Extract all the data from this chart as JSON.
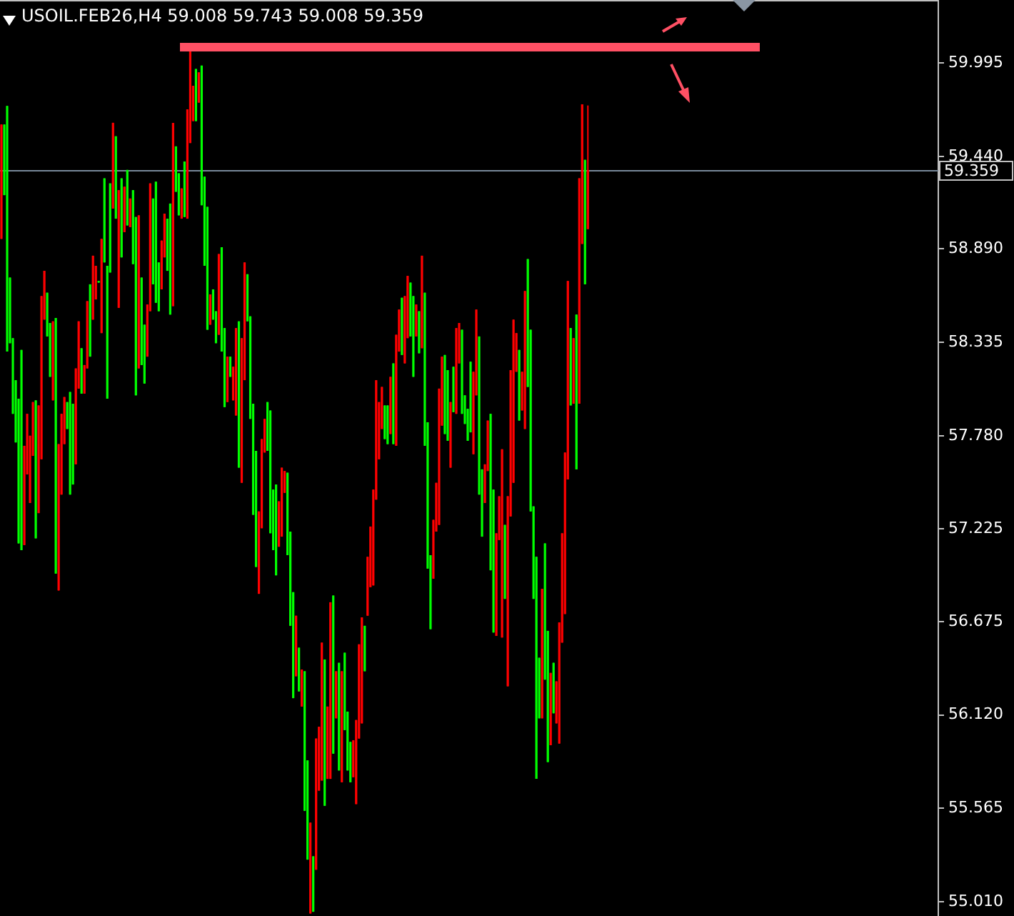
{
  "chart_data": {
    "type": "candlestick",
    "title": "USOIL.FEB26,H4 59.008 59.743 59.008 59.359",
    "categories": [
      null,
      null,
      null,
      null,
      null,
      null,
      null,
      null,
      null,
      null,
      null,
      null,
      null,
      null,
      null,
      null,
      null,
      null,
      null,
      null,
      null,
      null,
      null,
      null,
      null,
      null,
      null,
      null,
      null,
      null,
      null,
      null,
      null,
      null,
      null,
      null,
      null,
      null,
      null,
      null,
      null,
      null,
      null,
      null,
      null,
      null,
      null,
      null,
      null,
      null,
      null,
      null,
      null,
      null,
      null,
      null,
      null,
      null,
      null,
      null,
      null,
      null,
      null,
      null,
      null,
      null,
      null,
      null,
      null,
      null,
      null,
      null,
      null,
      null,
      null,
      null,
      null,
      null,
      null,
      null,
      null,
      null,
      null,
      null,
      null,
      null,
      null,
      null,
      null,
      null,
      null,
      null,
      null,
      null,
      null,
      null,
      null,
      null,
      null,
      null,
      null,
      null,
      null,
      null,
      null,
      null,
      null,
      null,
      null,
      null,
      null,
      null,
      null,
      null,
      null,
      null,
      null,
      null,
      null,
      null,
      null,
      null,
      null,
      null,
      null,
      null,
      null,
      null,
      null,
      null,
      null,
      null,
      null,
      null,
      null,
      null,
      null,
      null,
      null,
      null,
      null,
      null,
      null,
      null,
      null,
      null,
      null,
      null,
      null,
      null,
      null,
      null,
      null,
      null,
      null,
      null,
      null,
      null,
      null,
      null,
      null,
      null,
      null,
      null,
      null,
      null,
      null,
      null,
      null,
      null,
      null,
      null,
      null,
      null,
      null,
      null,
      null,
      null,
      null,
      null,
      null,
      null,
      null,
      null,
      null,
      null,
      null,
      null,
      null,
      null,
      null,
      null,
      null,
      null,
      null,
      null,
      null,
      null,
      null,
      null,
      null,
      null,
      null,
      null,
      null,
      null,
      null,
      null,
      null,
      null,
      null,
      null,
      null,
      null,
      null,
      null,
      null,
      null,
      null,
      null,
      null,
      null,
      null,
      null,
      null,
      null,
      null,
      null,
      null,
      null,
      null,
      null,
      null,
      null,
      null,
      null,
      null,
      null,
      null,
      null,
      null,
      null,
      null,
      null,
      null,
      null,
      null,
      null,
      null,
      null,
      null,
      null,
      null,
      null,
      null,
      null,
      null,
      null,
      null,
      null,
      null,
      null,
      null,
      null,
      null,
      null,
      null,
      null,
      null,
      null,
      null,
      null,
      null,
      null,
      null,
      null,
      null,
      null,
      null,
      null,
      null,
      null,
      null,
      null,
      null,
      null,
      null,
      null,
      null,
      null,
      null,
      null,
      null,
      null,
      null,
      null,
      null,
      null,
      null,
      null,
      null,
      null,
      null,
      null,
      null,
      null,
      null,
      null,
      null,
      null,
      null,
      null,
      null,
      null,
      null,
      null,
      null,
      null,
      null,
      null,
      null,
      null,
      null,
      null,
      null,
      null,
      null,
      null
    ],
    "ohlc": [
      [
        58.95,
        59.63,
        58.95,
        59.63
      ],
      [
        59.63,
        59.63,
        59.21,
        59.21
      ],
      [
        59.74,
        59.74,
        58.28,
        58.28
      ],
      [
        58.72,
        58.72,
        58.33,
        58.33
      ],
      [
        58.36,
        58.36,
        57.91,
        57.91
      ],
      [
        58.11,
        58.11,
        57.74,
        57.74
      ],
      [
        58.0,
        58.0,
        57.14,
        57.14
      ],
      [
        58.29,
        58.29,
        57.1,
        57.1
      ],
      [
        57.13,
        57.72,
        57.13,
        57.72
      ],
      [
        57.55,
        57.91,
        57.55,
        57.91
      ],
      [
        57.38,
        57.78,
        57.38,
        57.78
      ],
      [
        57.66,
        57.98,
        57.66,
        57.98
      ],
      [
        57.99,
        57.99,
        57.17,
        57.17
      ],
      [
        57.32,
        57.96,
        57.32,
        57.96
      ],
      [
        57.64,
        58.61,
        57.64,
        58.61
      ],
      [
        58.47,
        58.76,
        58.47,
        58.76
      ],
      [
        58.63,
        58.63,
        58.37,
        58.37
      ],
      [
        58.45,
        58.45,
        58.13,
        58.13
      ],
      [
        57.99,
        58.46,
        57.99,
        58.46
      ],
      [
        58.48,
        58.48,
        56.96,
        56.96
      ],
      [
        56.86,
        57.73,
        56.86,
        57.73
      ],
      [
        57.43,
        57.91,
        57.43,
        57.91
      ],
      [
        57.73,
        58.01,
        57.73,
        58.01
      ],
      [
        57.98,
        57.98,
        57.82,
        57.82
      ],
      [
        58.04,
        58.04,
        57.43,
        57.43
      ],
      [
        57.97,
        57.97,
        57.49,
        57.49
      ],
      [
        57.61,
        58.18,
        57.61,
        58.18
      ],
      [
        58.06,
        58.46,
        58.06,
        58.46
      ],
      [
        58.3,
        58.3,
        58.03,
        58.03
      ],
      [
        58.03,
        58.2,
        58.03,
        58.2
      ],
      [
        58.18,
        58.58,
        58.18,
        58.58
      ],
      [
        58.68,
        58.68,
        58.25,
        58.25
      ],
      [
        58.47,
        58.85,
        58.47,
        58.85
      ],
      [
        58.59,
        58.79,
        58.59,
        58.79
      ],
      [
        58.7,
        58.7,
        58.69,
        58.69
      ],
      [
        58.39,
        58.95,
        58.39,
        58.95
      ],
      [
        59.31,
        59.31,
        58.81,
        58.81
      ],
      [
        58.79,
        58.79,
        58.0,
        58.0
      ],
      [
        59.28,
        59.28,
        58.75,
        58.75
      ],
      [
        59.13,
        59.64,
        59.13,
        59.64
      ],
      [
        59.56,
        59.56,
        59.07,
        59.07
      ],
      [
        58.54,
        59.24,
        58.54,
        59.24
      ],
      [
        59.31,
        59.31,
        58.84,
        58.84
      ],
      [
        58.99,
        59.26,
        58.99,
        59.26
      ],
      [
        59.36,
        59.36,
        59.03,
        59.03
      ],
      [
        59.02,
        59.19,
        59.02,
        59.19
      ],
      [
        59.24,
        59.24,
        58.8,
        58.8
      ],
      [
        59.08,
        59.08,
        58.02,
        58.02
      ],
      [
        58.18,
        59.09,
        58.18,
        59.09
      ],
      [
        58.72,
        58.72,
        58.2,
        58.2
      ],
      [
        58.44,
        58.44,
        58.09,
        58.09
      ],
      [
        58.25,
        58.56,
        58.25,
        58.56
      ],
      [
        58.52,
        59.28,
        58.52,
        59.28
      ],
      [
        59.19,
        59.19,
        58.68,
        58.68
      ],
      [
        59.29,
        59.29,
        58.57,
        58.57
      ],
      [
        58.81,
        58.81,
        58.52,
        58.52
      ],
      [
        58.65,
        58.94,
        58.65,
        58.94
      ],
      [
        58.84,
        59.1,
        58.84,
        59.1
      ],
      [
        59.07,
        59.07,
        58.76,
        58.76
      ],
      [
        59.16,
        59.16,
        58.5,
        58.5
      ],
      [
        58.55,
        59.64,
        58.55,
        59.64
      ],
      [
        59.5,
        59.5,
        59.23,
        59.23
      ],
      [
        59.34,
        59.34,
        59.09,
        59.09
      ],
      [
        59.07,
        59.25,
        59.07,
        59.25
      ],
      [
        59.41,
        59.41,
        59.08,
        59.08
      ],
      [
        59.07,
        59.72,
        59.07,
        59.72
      ],
      [
        59.52,
        60.07,
        59.52,
        60.07
      ],
      [
        59.65,
        59.86,
        59.65,
        59.86
      ],
      [
        59.96,
        59.96,
        59.65,
        59.65
      ],
      [
        59.76,
        59.94,
        59.76,
        59.94
      ],
      [
        59.98,
        59.98,
        59.15,
        59.15
      ],
      [
        59.32,
        59.32,
        58.79,
        58.79
      ],
      [
        59.14,
        59.14,
        58.41,
        58.41
      ],
      [
        58.44,
        58.62,
        58.44,
        58.62
      ],
      [
        58.65,
        58.65,
        58.47,
        58.47
      ],
      [
        58.52,
        58.52,
        58.33,
        58.33
      ],
      [
        58.38,
        58.86,
        58.38,
        58.86
      ],
      [
        58.9,
        58.9,
        58.28,
        58.28
      ],
      [
        58.42,
        58.42,
        57.95,
        57.95
      ],
      [
        57.98,
        58.25,
        57.98,
        58.25
      ],
      [
        58.25,
        58.25,
        58.13,
        58.13
      ],
      [
        57.99,
        58.19,
        57.99,
        58.19
      ],
      [
        57.9,
        58.42,
        57.9,
        58.42
      ],
      [
        58.46,
        58.46,
        57.59,
        57.59
      ],
      [
        57.5,
        58.36,
        57.5,
        58.36
      ],
      [
        58.11,
        58.81,
        58.11,
        58.81
      ],
      [
        58.74,
        58.74,
        58.46,
        58.46
      ],
      [
        58.49,
        58.49,
        57.88,
        57.88
      ],
      [
        57.97,
        57.97,
        57.31,
        57.31
      ],
      [
        57.69,
        57.69,
        57.0,
        57.0
      ],
      [
        56.84,
        57.33,
        56.84,
        57.33
      ],
      [
        57.23,
        57.76,
        57.23,
        57.76
      ],
      [
        57.68,
        57.88,
        57.68,
        57.88
      ],
      [
        57.98,
        57.98,
        57.69,
        57.69
      ],
      [
        57.93,
        57.93,
        57.2,
        57.2
      ],
      [
        57.46,
        57.46,
        57.1,
        57.1
      ],
      [
        57.49,
        57.49,
        56.95,
        56.95
      ],
      [
        57.12,
        57.39,
        57.12,
        57.39
      ],
      [
        57.18,
        57.59,
        57.18,
        57.59
      ],
      [
        57.44,
        57.57,
        57.44,
        57.57
      ],
      [
        57.56,
        57.56,
        57.07,
        57.07
      ],
      [
        57.21,
        57.21,
        56.65,
        56.65
      ],
      [
        56.85,
        56.85,
        56.22,
        56.22
      ],
      [
        56.35,
        56.71,
        56.35,
        56.71
      ],
      [
        56.52,
        56.52,
        56.26,
        56.26
      ],
      [
        56.17,
        56.39,
        56.17,
        56.39
      ],
      [
        56.38,
        56.38,
        55.55,
        55.55
      ],
      [
        55.85,
        55.85,
        55.26,
        55.26
      ],
      [
        54.94,
        55.48,
        54.94,
        55.48
      ],
      [
        55.28,
        55.28,
        54.95,
        54.95
      ],
      [
        55.2,
        55.98,
        55.2,
        55.98
      ],
      [
        55.67,
        56.05,
        55.67,
        56.05
      ],
      [
        55.73,
        56.55,
        55.73,
        56.55
      ],
      [
        56.45,
        56.45,
        55.58,
        55.58
      ],
      [
        55.74,
        56.17,
        55.74,
        56.17
      ],
      [
        55.74,
        56.79,
        55.74,
        56.79
      ],
      [
        56.83,
        56.83,
        55.89,
        55.89
      ],
      [
        56.1,
        56.38,
        56.1,
        56.38
      ],
      [
        56.43,
        56.43,
        55.79,
        55.79
      ],
      [
        55.72,
        56.38,
        55.72,
        56.38
      ],
      [
        56.49,
        56.49,
        56.03,
        56.03
      ],
      [
        56.14,
        56.14,
        55.79,
        55.79
      ],
      [
        55.96,
        55.96,
        55.72,
        55.72
      ],
      [
        55.75,
        55.97,
        55.75,
        55.97
      ],
      [
        55.59,
        56.09,
        55.59,
        56.09
      ],
      [
        55.98,
        56.54,
        55.98,
        56.54
      ],
      [
        56.07,
        56.7,
        56.07,
        56.7
      ],
      [
        56.65,
        56.65,
        56.38,
        56.38
      ],
      [
        56.71,
        57.06,
        56.71,
        57.06
      ],
      [
        56.88,
        57.24,
        56.88,
        57.24
      ],
      [
        56.89,
        57.46,
        56.89,
        57.46
      ],
      [
        57.4,
        58.11,
        57.4,
        58.11
      ],
      [
        57.64,
        57.98,
        57.64,
        57.98
      ],
      [
        57.82,
        58.07,
        57.82,
        58.07
      ],
      [
        57.96,
        57.96,
        57.76,
        57.76
      ],
      [
        57.96,
        57.96,
        57.73,
        57.73
      ],
      [
        57.79,
        58.13,
        57.79,
        58.13
      ],
      [
        58.21,
        58.21,
        57.73,
        57.73
      ],
      [
        57.72,
        58.38,
        57.72,
        58.38
      ],
      [
        58.28,
        58.53,
        58.28,
        58.53
      ],
      [
        58.6,
        58.6,
        58.26,
        58.26
      ],
      [
        58.21,
        58.61,
        58.21,
        58.61
      ],
      [
        58.36,
        58.73,
        58.36,
        58.73
      ],
      [
        58.69,
        58.69,
        58.37,
        58.37
      ],
      [
        58.61,
        58.61,
        58.13,
        58.13
      ],
      [
        58.37,
        58.56,
        58.37,
        58.56
      ],
      [
        58.52,
        58.52,
        58.27,
        58.27
      ],
      [
        58.3,
        58.85,
        58.3,
        58.85
      ],
      [
        58.63,
        58.63,
        57.72,
        57.72
      ],
      [
        57.86,
        57.86,
        56.99,
        56.99
      ],
      [
        57.07,
        57.07,
        56.63,
        56.63
      ],
      [
        56.93,
        57.28,
        56.93,
        57.28
      ],
      [
        57.21,
        57.5,
        57.21,
        57.5
      ],
      [
        57.25,
        58.06,
        57.25,
        58.06
      ],
      [
        57.84,
        58.25,
        57.84,
        58.25
      ],
      [
        58.26,
        58.26,
        57.79,
        57.79
      ],
      [
        58.17,
        58.17,
        57.75,
        57.75
      ],
      [
        57.59,
        57.98,
        57.59,
        57.98
      ],
      [
        58.19,
        58.19,
        57.92,
        57.92
      ],
      [
        57.91,
        58.42,
        57.91,
        58.42
      ],
      [
        58.21,
        58.45,
        58.21,
        58.45
      ],
      [
        58.41,
        58.41,
        57.91,
        57.91
      ],
      [
        58.02,
        58.02,
        57.85,
        57.85
      ],
      [
        57.94,
        57.94,
        57.75,
        57.75
      ],
      [
        58.22,
        58.22,
        57.8,
        57.8
      ],
      [
        57.67,
        58.16,
        57.67,
        58.16
      ],
      [
        58.02,
        58.53,
        58.02,
        58.53
      ],
      [
        58.37,
        58.37,
        57.43,
        57.43
      ],
      [
        57.58,
        57.58,
        57.18,
        57.18
      ],
      [
        57.38,
        57.61,
        57.38,
        57.61
      ],
      [
        57.57,
        57.87,
        57.57,
        57.87
      ],
      [
        57.91,
        57.91,
        56.98,
        56.98
      ],
      [
        57.46,
        57.46,
        56.61,
        56.61
      ],
      [
        56.59,
        57.2,
        56.59,
        57.2
      ],
      [
        57.16,
        57.42,
        57.16,
        57.42
      ],
      [
        56.58,
        57.7,
        56.58,
        57.7
      ],
      [
        57.25,
        57.25,
        56.81,
        56.81
      ],
      [
        56.29,
        57.42,
        56.29,
        57.42
      ],
      [
        57.3,
        58.17,
        57.3,
        58.17
      ],
      [
        57.5,
        58.47,
        57.5,
        58.47
      ],
      [
        58.16,
        58.39,
        58.16,
        58.39
      ],
      [
        58.29,
        58.29,
        57.87,
        57.87
      ],
      [
        57.93,
        58.16,
        57.93,
        58.16
      ],
      [
        57.82,
        58.64,
        57.82,
        58.64
      ],
      [
        58.83,
        58.83,
        58.07,
        58.07
      ],
      [
        58.41,
        58.41,
        57.33,
        57.33
      ],
      [
        57.36,
        57.36,
        56.81,
        56.81
      ],
      [
        57.06,
        57.06,
        55.74,
        55.74
      ],
      [
        56.46,
        56.46,
        56.1,
        56.1
      ],
      [
        56.1,
        56.87,
        56.1,
        56.87
      ],
      [
        57.14,
        57.14,
        56.33,
        56.33
      ],
      [
        56.62,
        56.62,
        55.84,
        55.84
      ],
      [
        55.94,
        56.37,
        55.94,
        56.37
      ],
      [
        56.43,
        56.43,
        56.13,
        56.13
      ],
      [
        56.07,
        56.32,
        56.07,
        56.32
      ],
      [
        55.95,
        56.67,
        55.95,
        56.67
      ],
      [
        56.55,
        57.2,
        56.55,
        57.2
      ],
      [
        56.72,
        57.68,
        56.72,
        57.68
      ],
      [
        57.52,
        58.7,
        57.52,
        58.7
      ],
      [
        58.42,
        58.42,
        57.96,
        57.96
      ],
      [
        57.97,
        58.36,
        57.97,
        58.36
      ],
      [
        58.5,
        58.5,
        57.58,
        57.58
      ],
      [
        57.97,
        59.31,
        57.97,
        59.31
      ],
      [
        58.92,
        59.75,
        58.92,
        59.75
      ],
      [
        59.42,
        59.42,
        58.68,
        58.68
      ],
      [
        59.008,
        59.743,
        59.008,
        59.359
      ],
      null,
      null,
      null,
      null,
      null,
      null,
      null,
      null,
      null,
      null,
      null,
      null,
      null,
      null,
      null,
      null,
      null,
      null,
      null,
      null,
      null,
      null,
      null,
      null,
      null,
      null,
      null,
      null,
      null,
      null,
      null,
      null,
      null,
      null,
      null,
      null,
      null,
      null,
      null,
      null,
      null,
      null,
      null,
      null,
      null,
      null,
      null,
      null,
      null,
      null,
      null,
      null,
      null,
      null,
      null,
      null,
      null,
      null,
      null,
      null,
      null,
      null,
      null,
      null,
      null,
      null,
      null,
      null,
      null,
      null,
      null,
      null,
      null,
      null,
      null,
      null,
      null,
      null,
      null,
      null,
      null,
      null,
      null,
      null,
      null,
      null,
      null,
      null,
      null,
      null,
      null,
      null,
      null,
      null,
      null,
      null,
      null,
      null,
      null,
      null,
      null,
      null,
      null,
      null,
      null,
      null,
      null,
      null,
      null,
      null,
      null,
      null,
      null,
      null,
      null,
      null,
      null,
      null,
      null,
      null,
      null,
      null
    ],
    "colors": [
      "#ff0000",
      "#00ff00",
      "#00ff00",
      "#00ff00",
      "#00ff00",
      "#00ff00",
      "#00ff00",
      "#00ff00",
      "#ff0000",
      "#ff0000",
      "#ff0000",
      "#ff0000",
      "#00ff00",
      "#ff0000",
      "#ff0000",
      "#ff0000",
      "#00ff00",
      "#00ff00",
      "#ff0000",
      "#00ff00",
      "#ff0000",
      "#ff0000",
      "#ff0000",
      "#00ff00",
      "#00ff00",
      "#00ff00",
      "#ff0000",
      "#ff0000",
      "#00ff00",
      "#ff0000",
      "#ff0000",
      "#00ff00",
      "#ff0000",
      "#ff0000",
      "#00ff00",
      "#ff0000",
      "#00ff00",
      "#00ff00",
      "#00ff00",
      "#ff0000",
      "#00ff00",
      "#ff0000",
      "#00ff00",
      "#ff0000",
      "#00ff00",
      "#ff0000",
      "#00ff00",
      "#00ff00",
      "#ff0000",
      "#00ff00",
      "#00ff00",
      "#ff0000",
      "#ff0000",
      "#00ff00",
      "#00ff00",
      "#00ff00",
      "#ff0000",
      "#ff0000",
      "#00ff00",
      "#00ff00",
      "#ff0000",
      "#00ff00",
      "#00ff00",
      "#ff0000",
      "#00ff00",
      "#ff0000",
      "#ff0000",
      "#ff0000",
      "#00ff00",
      "#ff0000",
      "#00ff00",
      "#00ff00",
      "#00ff00",
      "#ff0000",
      "#00ff00",
      "#00ff00",
      "#ff0000",
      "#00ff00",
      "#00ff00",
      "#ff0000",
      "#00ff00",
      "#ff0000",
      "#ff0000",
      "#00ff00",
      "#ff0000",
      "#ff0000",
      "#00ff00",
      "#00ff00",
      "#00ff00",
      "#00ff00",
      "#ff0000",
      "#ff0000",
      "#ff0000",
      "#00ff00",
      "#00ff00",
      "#00ff00",
      "#00ff00",
      "#ff0000",
      "#ff0000",
      "#ff0000",
      "#00ff00",
      "#00ff00",
      "#00ff00",
      "#ff0000",
      "#00ff00",
      "#ff0000",
      "#00ff00",
      "#00ff00",
      "#ff0000",
      "#00ff00",
      "#ff0000",
      "#ff0000",
      "#ff0000",
      "#00ff00",
      "#ff0000",
      "#ff0000",
      "#00ff00",
      "#ff0000",
      "#00ff00",
      "#ff0000",
      "#00ff00",
      "#00ff00",
      "#00ff00",
      "#ff0000",
      "#ff0000",
      "#ff0000",
      "#ff0000",
      "#00ff00",
      "#ff0000",
      "#ff0000",
      "#ff0000",
      "#ff0000",
      "#ff0000",
      "#ff0000",
      "#00ff00",
      "#00ff00",
      "#ff0000",
      "#00ff00",
      "#ff0000",
      "#ff0000",
      "#00ff00",
      "#ff0000",
      "#ff0000",
      "#00ff00",
      "#00ff00",
      "#ff0000",
      "#00ff00",
      "#ff0000",
      "#00ff00",
      "#00ff00",
      "#00ff00",
      "#ff0000",
      "#ff0000",
      "#ff0000",
      "#ff0000",
      "#00ff00",
      "#00ff00",
      "#ff0000",
      "#00ff00",
      "#ff0000",
      "#ff0000",
      "#00ff00",
      "#00ff00",
      "#00ff00",
      "#00ff00",
      "#ff0000",
      "#ff0000",
      "#00ff00",
      "#00ff00",
      "#ff0000",
      "#ff0000",
      "#00ff00",
      "#00ff00",
      "#ff0000",
      "#ff0000",
      "#ff0000",
      "#00ff00",
      "#ff0000",
      "#ff0000",
      "#ff0000",
      "#ff0000",
      "#00ff00",
      "#ff0000",
      "#ff0000",
      "#00ff00",
      "#00ff00",
      "#00ff00",
      "#00ff00",
      "#00ff00",
      "#ff0000",
      "#00ff00",
      "#00ff00",
      "#ff0000",
      "#00ff00",
      "#ff0000",
      "#ff0000",
      "#ff0000",
      "#ff0000",
      "#ff0000",
      "#00ff00",
      "#ff0000",
      "#00ff00",
      "#ff0000",
      "#ff0000",
      "#00ff00",
      "#ff0000",
      null,
      null,
      null,
      null,
      null,
      null,
      null,
      null,
      null,
      null,
      null,
      null,
      null,
      null,
      null,
      null,
      null,
      null,
      null,
      null,
      null,
      null,
      null,
      null,
      null,
      null,
      null,
      null,
      null,
      null,
      null,
      null,
      null,
      null,
      null,
      null,
      null,
      null,
      null,
      null,
      null,
      null,
      null,
      null,
      null,
      null,
      null,
      null,
      null,
      null,
      null,
      null,
      null,
      null,
      null,
      null,
      null,
      null,
      null,
      null,
      null,
      null,
      null,
      null,
      null,
      null,
      null,
      null,
      null,
      null,
      null,
      null,
      null,
      null,
      null,
      null,
      null,
      null,
      null,
      null,
      null,
      null,
      null,
      null,
      null,
      null,
      null,
      null,
      null,
      null,
      null,
      null,
      null,
      null,
      null,
      null,
      null,
      null,
      null,
      null,
      null,
      null,
      null,
      null,
      null,
      null,
      null,
      null,
      null,
      null,
      null,
      null,
      null,
      null,
      null,
      null,
      null,
      null,
      null,
      null,
      null,
      null
    ],
    "ylim": [
      54.925,
      60.37
    ],
    "yticks": [
      59.995,
      {
        "value": 59.44,
        "label": "59.440"
      },
      {
        "value": 58.89,
        "label": "58.890"
      },
      58.335,
      {
        "value": 57.78,
        "label": "57.780"
      },
      57.225,
      56.675,
      {
        "value": 56.12,
        "label": "56.120"
      },
      55.565,
      {
        "value": 55.01,
        "label": "55.010"
      }
    ],
    "ref_lines": [
      {
        "axis": "y",
        "value": 59.359,
        "label": "59.359",
        "color": "#778899"
      }
    ],
    "tick_labels": "y"
  }
}
